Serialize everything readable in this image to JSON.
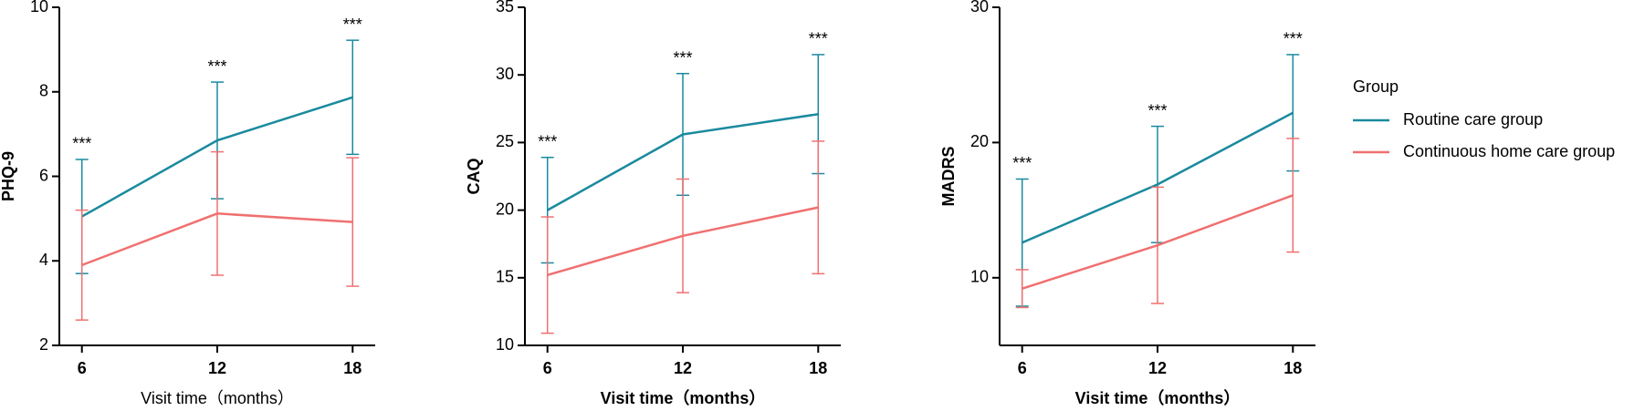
{
  "chart_data": [
    {
      "type": "line",
      "ylabel": "PHQ-9",
      "xlabel": "Visit time（months）",
      "xlabel_bold": false,
      "x": [
        6,
        12,
        18
      ],
      "xlim": [
        5,
        19
      ],
      "xticks": [
        6,
        12,
        18
      ],
      "ylim": [
        2,
        10
      ],
      "yticks": [
        2,
        4,
        6,
        8,
        10
      ],
      "annotations": [
        "***",
        "***",
        "***"
      ],
      "series": [
        {
          "color": "#1a8a9e",
          "values": [
            5.05,
            6.85,
            7.87
          ],
          "errors": [
            1.35,
            1.38,
            1.35
          ]
        },
        {
          "color": "#f07070",
          "values": [
            3.9,
            5.12,
            4.92
          ],
          "errors": [
            1.3,
            1.46,
            1.52
          ]
        }
      ]
    },
    {
      "type": "line",
      "ylabel": "CAQ",
      "xlabel": "Visit time（months）",
      "xlabel_bold": true,
      "x": [
        6,
        12,
        18
      ],
      "xlim": [
        5,
        19
      ],
      "xticks": [
        6,
        12,
        18
      ],
      "ylim": [
        10,
        35
      ],
      "yticks": [
        10,
        15,
        20,
        25,
        30,
        35
      ],
      "annotations": [
        "***",
        "***",
        "***"
      ],
      "series": [
        {
          "color": "#1a8a9e",
          "values": [
            20.0,
            25.6,
            27.1
          ],
          "errors": [
            3.9,
            4.5,
            4.4
          ]
        },
        {
          "color": "#f07070",
          "values": [
            15.2,
            18.1,
            20.2
          ],
          "errors": [
            4.3,
            4.2,
            4.9
          ]
        }
      ]
    },
    {
      "type": "line",
      "ylabel": "MADRS",
      "xlabel": "Visit time（months）",
      "xlabel_bold": true,
      "x": [
        6,
        12,
        18
      ],
      "xlim": [
        5,
        19
      ],
      "xticks": [
        6,
        12,
        18
      ],
      "ylim": [
        5,
        30
      ],
      "yticks": [
        10,
        20,
        30
      ],
      "annotations": [
        "***",
        "***",
        "***"
      ],
      "legend_title": "Group",
      "series": [
        {
          "name": "Routine care group",
          "color": "#1a8a9e",
          "values": [
            12.6,
            16.9,
            22.2
          ],
          "errors": [
            4.7,
            4.3,
            4.3
          ]
        },
        {
          "name": "Continuous home care group",
          "color": "#f07070",
          "values": [
            9.2,
            12.4,
            16.1
          ],
          "errors": [
            1.4,
            4.3,
            4.2
          ]
        }
      ]
    }
  ]
}
